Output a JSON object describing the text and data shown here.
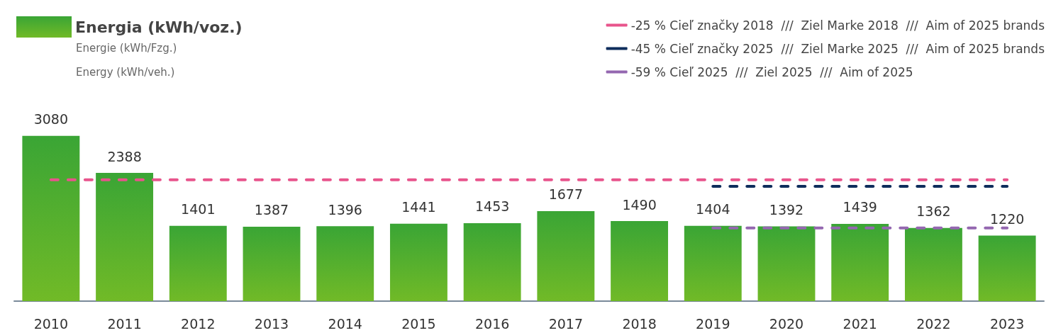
{
  "chart_data": {
    "type": "bar",
    "categories": [
      "2010",
      "2011",
      "2012",
      "2013",
      "2014",
      "2015",
      "2016",
      "2017",
      "2018",
      "2019",
      "2020",
      "2021",
      "2022",
      "2023"
    ],
    "series": [
      {
        "name": "Energia (kWh/voz.)",
        "color": "#3aa535",
        "values": [
          3080,
          2388,
          1401,
          1387,
          1396,
          1441,
          1453,
          1677,
          1490,
          1404,
          1392,
          1439,
          1362,
          1220
        ],
        "value_labels": [
          "3080",
          "2388",
          "1401",
          "1387",
          "1396",
          "1441",
          "1453",
          "1677",
          "1490",
          "1404",
          "1392",
          "1439",
          "1362",
          "1220"
        ]
      },
      {
        "type": "line",
        "name": "-25 % Cieľ značky 2018  ///  Ziel Marke 2018  ///  Aim of 2025 brands",
        "color": "#e8548c",
        "line_style": "dashed",
        "values": [
          2260,
          2260,
          2260,
          2260,
          2260,
          2260,
          2260,
          2260,
          2260,
          2260,
          2260,
          2260,
          2260,
          2260
        ]
      },
      {
        "type": "line",
        "name": "-45 % Cieľ značky 2025  ///  Ziel Marke 2025  ///  Aim of 2025 brands",
        "color": "#0e2d5c",
        "line_style": "dashed",
        "values": [
          null,
          null,
          null,
          null,
          null,
          null,
          null,
          null,
          null,
          2140,
          2140,
          2140,
          2140,
          2140
        ]
      },
      {
        "type": "line",
        "name": "-59 % Cieľ 2025  ///  Ziel 2025  ///  Aim of 2025",
        "color": "#9467b0",
        "line_style": "dashed",
        "values": [
          null,
          null,
          null,
          null,
          null,
          null,
          null,
          null,
          null,
          1362,
          1362,
          1362,
          1362,
          1362
        ]
      }
    ],
    "annotations": [
      "Energie (kWh/Fzg.)",
      "Energy (kWh/veh.)"
    ],
    "legend": "top",
    "marker": "none"
  }
}
